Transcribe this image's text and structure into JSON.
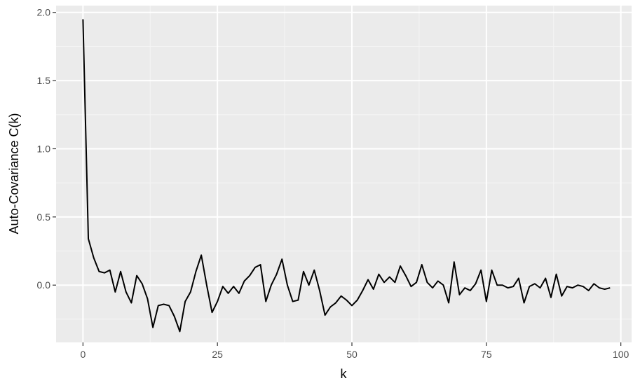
{
  "chart_data": {
    "type": "line",
    "title": "",
    "xlabel": "k",
    "ylabel": "Auto-Covariance C(k)",
    "xlim": [
      -5,
      102
    ],
    "ylim": [
      -0.42,
      2.05
    ],
    "x_ticks": [
      0,
      25,
      50,
      75,
      100
    ],
    "x_tick_labels": [
      "0",
      "25",
      "50",
      "75",
      "100"
    ],
    "y_ticks": [
      0.0,
      0.5,
      1.0,
      1.5,
      2.0
    ],
    "y_tick_labels": [
      "0.0",
      "0.5",
      "1.0",
      "1.5",
      "2.0"
    ],
    "grid": true,
    "background": "#ebebeb",
    "grid_color": "#ffffff",
    "line_color": "#000000",
    "series": [
      {
        "x": [
          0,
          1,
          2,
          3,
          4,
          5,
          6,
          7,
          8,
          9,
          10,
          11,
          12,
          13,
          14,
          15,
          16,
          17,
          18,
          19,
          20,
          21,
          22,
          23,
          24,
          25,
          26,
          27,
          28,
          29,
          30,
          31,
          32,
          33,
          34,
          35,
          36,
          37,
          38,
          39,
          40,
          41,
          42,
          43,
          44,
          45,
          46,
          47,
          48,
          49,
          50,
          51,
          52,
          53,
          54,
          55,
          56,
          57,
          58,
          59,
          60,
          61,
          62,
          63,
          64,
          65,
          66,
          67,
          68,
          69,
          70,
          71,
          72,
          73,
          74,
          75,
          76,
          77,
          78,
          79,
          80,
          81,
          82,
          83,
          84,
          85,
          86,
          87,
          88,
          89,
          90,
          91,
          92,
          93,
          94,
          95,
          96,
          97,
          98
        ],
        "values": [
          1.95,
          0.34,
          0.2,
          0.1,
          0.09,
          0.11,
          -0.05,
          0.1,
          -0.05,
          -0.13,
          0.07,
          0.01,
          -0.1,
          -0.31,
          -0.15,
          -0.14,
          -0.15,
          -0.23,
          -0.34,
          -0.12,
          -0.05,
          0.1,
          0.22,
          0.0,
          -0.2,
          -0.12,
          -0.01,
          -0.06,
          -0.01,
          -0.06,
          0.03,
          0.07,
          0.13,
          0.15,
          -0.12,
          0.0,
          0.08,
          0.19,
          0.0,
          -0.12,
          -0.11,
          0.1,
          0.0,
          0.11,
          -0.04,
          -0.22,
          -0.16,
          -0.13,
          -0.08,
          -0.11,
          -0.15,
          -0.11,
          -0.04,
          0.04,
          -0.03,
          0.08,
          0.02,
          0.06,
          0.02,
          0.14,
          0.07,
          -0.01,
          0.02,
          0.15,
          0.02,
          -0.02,
          0.03,
          0.0,
          -0.13,
          0.17,
          -0.07,
          -0.02,
          -0.04,
          0.01,
          0.11,
          -0.12,
          0.11,
          0.0,
          0.0,
          -0.02,
          -0.01,
          0.05,
          -0.13,
          -0.01,
          0.01,
          -0.02,
          0.05,
          -0.09,
          0.08,
          -0.08,
          -0.01,
          -0.02,
          0.0,
          -0.01,
          -0.04,
          0.01,
          -0.02,
          -0.03,
          -0.02
        ]
      }
    ]
  }
}
